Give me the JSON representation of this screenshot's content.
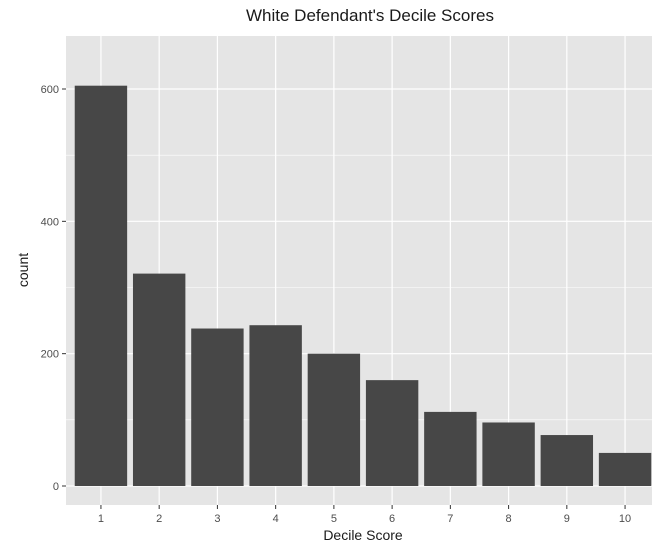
{
  "chart_data": {
    "type": "bar",
    "title": "White Defendant's Decile Scores",
    "xlabel": "Decile Score",
    "ylabel": "count",
    "categories": [
      "1",
      "2",
      "3",
      "4",
      "5",
      "6",
      "7",
      "8",
      "9",
      "10"
    ],
    "values": [
      605,
      321,
      238,
      243,
      200,
      160,
      112,
      96,
      77,
      50
    ],
    "ylim": [
      0,
      690
    ],
    "yticks": [
      0,
      200,
      400,
      600
    ],
    "grid": true,
    "bar_color": "#474747",
    "panel_color": "#e5e5e5",
    "grid_color": "#ffffff"
  }
}
